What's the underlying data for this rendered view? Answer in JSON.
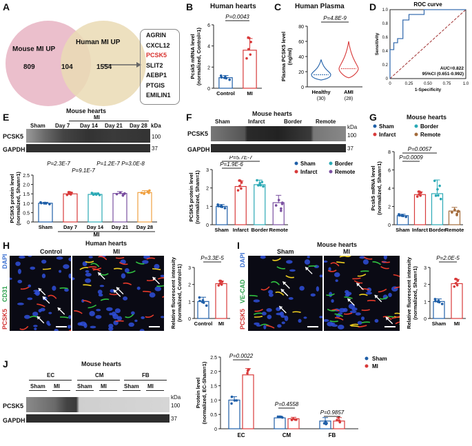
{
  "colors": {
    "sham_blue": "#1f5fa8",
    "mi_red": "#d83a3a",
    "venn_left": "#e9b8c6",
    "venn_right": "#eadbb4",
    "teal": "#2aa9b5",
    "orange": "#f0a040",
    "purple": "#7a4fa0",
    "brown": "#a26a3a",
    "highlight": "#d9302c"
  },
  "panelA": {
    "label": "A",
    "left_title": "Mouse MI UP",
    "right_title": "Human MI UP",
    "left_only": "809",
    "overlap": "104",
    "right_only": "1554",
    "genes": [
      "AGRIN",
      "CXCL12",
      "PCSK5",
      "SLIT2",
      "AEBP1",
      "PTGIS",
      "EMILIN1"
    ]
  },
  "panelB": {
    "label": "B",
    "title": "Human hearts",
    "pvalue": "P=0.0043",
    "ylabel": "Pcsk5 mRNA level (normalized, Control=1)",
    "chart_data": {
      "type": "bar",
      "categories": [
        "Control",
        "MI"
      ],
      "values": [
        1.0,
        3.6
      ],
      "errors": [
        0.2,
        1.1
      ],
      "ylim": [
        0,
        6
      ],
      "yticks": [
        0,
        2,
        4,
        6
      ],
      "points": [
        [
          0.9,
          1.0,
          1.1
        ],
        [
          2.3,
          3.3,
          4.3,
          4.8,
          5.2
        ]
      ]
    }
  },
  "panelC": {
    "label": "C",
    "title": "Human Plasma",
    "pvalue": "P=4.8E-9",
    "ylabel": "Plasma PCSK5 level (ng/ml)",
    "chart_data": {
      "type": "violin",
      "categories": [
        "Healthy",
        "AMI"
      ],
      "counts": [
        "(30)",
        "(28)"
      ],
      "medians": [
        16,
        24
      ],
      "ranges": [
        [
          9,
          36
        ],
        [
          12,
          60
        ]
      ],
      "ylim": [
        0,
        80
      ],
      "yticks": [
        0,
        20,
        40,
        60,
        80
      ]
    }
  },
  "panelD": {
    "label": "D",
    "title": "ROC curve",
    "xlabel": "1-Specificity",
    "ylabel": "Sensitivity",
    "auc": "AUC=0.822",
    "ci": "95%CI (0.651-0.992)",
    "chart_data": {
      "type": "line",
      "x": [
        0,
        0,
        0.05,
        0.05,
        0.1,
        0.1,
        0.17,
        0.17,
        0.25,
        0.25,
        0.45,
        0.45,
        1
      ],
      "y": [
        0,
        0.42,
        0.42,
        0.52,
        0.52,
        0.58,
        0.58,
        0.85,
        0.85,
        0.93,
        0.93,
        1,
        1
      ],
      "xlim": [
        0,
        1
      ],
      "ylim": [
        0,
        1
      ],
      "xticks": [
        "0",
        "0.25",
        "0.50",
        "0.75",
        "1.0"
      ],
      "yticks": [
        "0",
        "0.2",
        "0.4",
        "0.6",
        "0.8",
        "1.0"
      ]
    }
  },
  "panelE": {
    "label": "E",
    "title": "Mouse hearts",
    "mi_label": "MI",
    "groups": [
      "Sham",
      "Day 7",
      "Day 14",
      "Day 21",
      "Day 28"
    ],
    "blot_rows": [
      "PCSK5",
      "GAPDH"
    ],
    "kda": "kDa",
    "mw": [
      "100",
      "37"
    ],
    "pvalues": [
      "P=2.3E-7",
      "P=9.1E-7",
      "P=1.2E-7",
      "P=3.0E-8"
    ],
    "ylabel": "PCSK5 protein level (normalized, Sham=1)",
    "chart_data": {
      "type": "bar",
      "categories": [
        "Sham",
        "Day 7",
        "Day 14",
        "Day 21",
        "Day 28"
      ],
      "values": [
        1.0,
        1.5,
        1.47,
        1.52,
        1.57
      ],
      "errors": [
        0.05,
        0.08,
        0.08,
        0.1,
        0.1
      ],
      "ylim": [
        0,
        2.5
      ],
      "yticks": [
        "0",
        "0.5",
        "1.0",
        "1.5",
        "2.0",
        "2.5"
      ]
    }
  },
  "panelF": {
    "label": "F",
    "title": "Mouse hearts",
    "groups": [
      "Sham",
      "Infarct",
      "Border",
      "Remote"
    ],
    "blot_rows": [
      "PCSK5",
      "GAPDH"
    ],
    "kda": "kDa",
    "mw": [
      "100",
      "37"
    ],
    "pvalues": [
      "P=5.7E-7",
      "P=1.9E-6"
    ],
    "ylabel": "PCSK5 protein level (normalized, Sham=1)",
    "legend": [
      "Sham",
      "Border",
      "Infarct",
      "Remote"
    ],
    "chart_data": {
      "type": "bar",
      "categories": [
        "Sham",
        "Infarct",
        "Border",
        "Remote"
      ],
      "values": [
        1.0,
        2.08,
        2.18,
        1.2
      ],
      "errors": [
        0.1,
        0.3,
        0.25,
        0.4
      ],
      "ylim": [
        0,
        3
      ],
      "yticks": [
        0,
        1,
        2,
        3
      ]
    }
  },
  "panelG": {
    "label": "G",
    "title": "Mouse hearts",
    "legend": [
      "Sham",
      "Border",
      "Infarct",
      "Remote"
    ],
    "pvalues": [
      "P=0.0057",
      "P=0.0009"
    ],
    "ylabel": "Pcsk5 mRNA level (normalized, Sham=1)",
    "chart_data": {
      "type": "bar",
      "categories": [
        "Sham",
        "Infarct",
        "Border",
        "Remote"
      ],
      "values": [
        1.0,
        3.3,
        3.4,
        1.5
      ],
      "errors": [
        0.15,
        0.3,
        1.5,
        0.4
      ],
      "ylim": [
        0,
        8
      ],
      "yticks": [
        0,
        2,
        4,
        6,
        8
      ]
    }
  },
  "panelH": {
    "label": "H",
    "title": "Human hearts",
    "col_labels": [
      "Control",
      "MI"
    ],
    "stains": [
      "DAPI",
      "CD31",
      "PCSK5"
    ],
    "pvalue": "P=3.3E-5",
    "ylabel": "Relative fluorescent intensity (normalized, Control=1)",
    "chart_data": {
      "type": "bar",
      "categories": [
        "Control",
        "MI"
      ],
      "values": [
        1.0,
        2.05
      ],
      "errors": [
        0.25,
        0.15
      ],
      "ylim": [
        0,
        3
      ],
      "yticks": [
        0,
        1,
        2,
        3
      ]
    }
  },
  "panelI": {
    "label": "I",
    "title": "Mouse hearts",
    "col_labels": [
      "Sham",
      "MI"
    ],
    "stains": [
      "DAPI",
      "VE-CAD",
      "PCSK5"
    ],
    "pvalue": "P=2.0E-5",
    "ylabel": "Relative fluorescent intensity (normalized, Sham=1)",
    "chart_data": {
      "type": "bar",
      "categories": [
        "Sham",
        "MI"
      ],
      "values": [
        1.0,
        2.05
      ],
      "errors": [
        0.15,
        0.25
      ],
      "ylim": [
        0,
        3
      ],
      "yticks": [
        0,
        1,
        2,
        3
      ]
    }
  },
  "panelJ": {
    "label": "J",
    "title": "Mouse hearts",
    "cell_types": [
      "EC",
      "CM",
      "FB"
    ],
    "subgroups": [
      "Sham",
      "MI",
      "Sham",
      "MI",
      "Sham",
      "MI"
    ],
    "blot_rows": [
      "PCSK5",
      "GAPDH"
    ],
    "kda": "kDa",
    "mw": [
      "100",
      "37"
    ],
    "pvalues": [
      "P=0.0022",
      "P=0.4558",
      "P=0.9857"
    ],
    "legend": [
      "Sham",
      "MI"
    ],
    "ylabel": "Protein level (normalized, EC-Sham=1)",
    "chart_data": {
      "type": "bar",
      "categories": [
        "EC",
        "CM",
        "FB"
      ],
      "series": [
        {
          "name": "Sham",
          "values": [
            1.0,
            0.38,
            0.27
          ],
          "errors": [
            0.12,
            0.05,
            0.12
          ]
        },
        {
          "name": "MI",
          "values": [
            1.88,
            0.35,
            0.27
          ],
          "errors": [
            0.22,
            0.05,
            0.12
          ]
        }
      ],
      "ylim": [
        0,
        2.5
      ],
      "yticks": [
        "0",
        "0.5",
        "1.0",
        "1.5",
        "2.0",
        "2.5"
      ]
    }
  }
}
